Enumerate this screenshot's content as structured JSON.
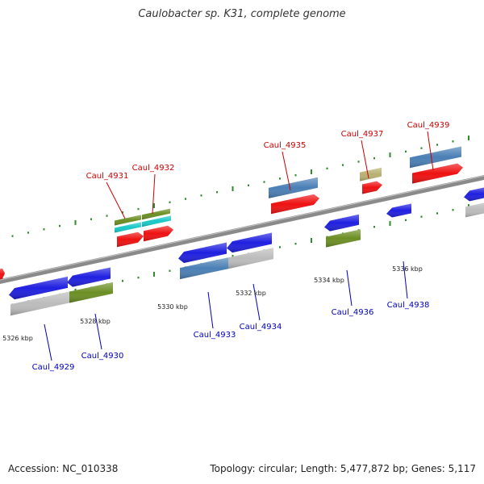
{
  "title": "Caulobacter sp. K31, complete genome",
  "footer": {
    "accession": "Accession: NC_010338",
    "summary": "Topology: circular; Length: 5,477,872 bp; Genes: 5,117"
  },
  "colors": {
    "backbone": "#8a8a8a",
    "tick": "#2e8b2e",
    "top_label": "#cc0000",
    "bottom_label": "#0000bb",
    "blue": "#1f1fe0",
    "steelblue": "#4a7fb5",
    "red": "#ee1111",
    "olive": "#6b8e23",
    "cyan": "#18c8c8",
    "khaki": "#b8b070",
    "silver": "#bcbcbc"
  },
  "diagram": {
    "scale_labels": [
      {
        "id": "5326",
        "text": "5326 kbp"
      },
      {
        "id": "5328",
        "text": "5328 kbp"
      },
      {
        "id": "5330",
        "text": "5330 kbp"
      },
      {
        "id": "5332",
        "text": "5332 kbp"
      },
      {
        "id": "5334",
        "text": "5334 kbp"
      },
      {
        "id": "5336",
        "text": "5336 kbp"
      }
    ],
    "gene_labels": [
      {
        "id": "4929",
        "text": "Caul_4929",
        "strand": "bottom"
      },
      {
        "id": "4930",
        "text": "Caul_4930",
        "strand": "bottom"
      },
      {
        "id": "4931",
        "text": "Caul_4931",
        "strand": "top"
      },
      {
        "id": "4932",
        "text": "Caul_4932",
        "strand": "top"
      },
      {
        "id": "4933",
        "text": "Caul_4933",
        "strand": "bottom"
      },
      {
        "id": "4934",
        "text": "Caul_4934",
        "strand": "bottom"
      },
      {
        "id": "4935",
        "text": "Caul_4935",
        "strand": "top"
      },
      {
        "id": "4936",
        "text": "Caul_4936",
        "strand": "bottom"
      },
      {
        "id": "4937",
        "text": "Caul_4937",
        "strand": "top"
      },
      {
        "id": "4938",
        "text": "Caul_4938",
        "strand": "bottom"
      },
      {
        "id": "4939",
        "text": "Caul_4939",
        "strand": "top"
      }
    ]
  }
}
